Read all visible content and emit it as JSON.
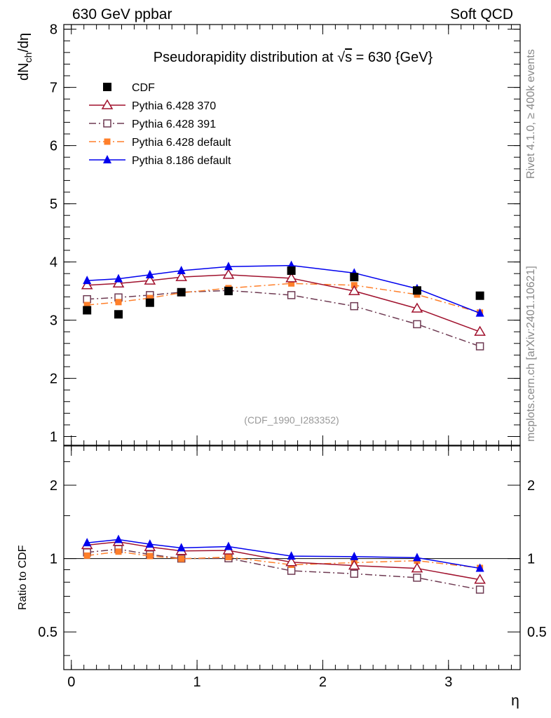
{
  "header": {
    "left": "630 GeV ppbar",
    "right": "Soft QCD"
  },
  "side_labels": {
    "rivet": "Rivet 4.1.0, ≥ 400k events",
    "mcplots": "mcplots.cern.ch [arXiv:2401.10621]"
  },
  "chart_data": {
    "type": "line",
    "title": "Pseudorapidity distribution at √s = 630 {GeV}",
    "title_prefix": "Pseudorapidity distribution at ",
    "title_sqrt": "√",
    "title_s": "s",
    "title_suffix": " = 630 {GeV}",
    "ylabel": "dN_ch/dη",
    "ylabel_main": "dN",
    "ylabel_sub": "ch",
    "ylabel_tail": "/dη",
    "ratio_ylabel": "Ratio to CDF",
    "xlabel": "η",
    "watermark": "(CDF_1990_I283352)",
    "xlim": [
      -0.06,
      3.57
    ],
    "ylim": [
      0.85,
      8.08
    ],
    "ratio_ylim": [
      0.35,
      2.9
    ],
    "ratio_scale": "log",
    "xticks": [
      "0",
      "1",
      "2",
      "3"
    ],
    "yticks": [
      "1",
      "2",
      "3",
      "4",
      "5",
      "6",
      "7",
      "8"
    ],
    "ratio_yticks": [
      "0.5",
      "1",
      "2"
    ],
    "legend_position": "top-left",
    "x": [
      0.125,
      0.375,
      0.625,
      0.875,
      1.25,
      1.75,
      2.25,
      2.75,
      3.25
    ],
    "series": [
      {
        "name": "CDF",
        "color": "#000000",
        "marker": "filled-square",
        "line": "none",
        "values": [
          3.17,
          3.1,
          3.3,
          3.48,
          3.5,
          3.85,
          3.74,
          3.51,
          3.42
        ]
      },
      {
        "name": "Pythia 6.428 370",
        "color": "#a0112d",
        "marker": "open-triangle",
        "line": "solid",
        "values": [
          3.6,
          3.63,
          3.68,
          3.74,
          3.78,
          3.72,
          3.5,
          3.2,
          2.8
        ]
      },
      {
        "name": "Pythia 6.428 391",
        "color": "#6e3a52",
        "marker": "open-square",
        "line": "dashdot",
        "values": [
          3.36,
          3.39,
          3.43,
          3.48,
          3.51,
          3.43,
          3.24,
          2.93,
          2.55
        ]
      },
      {
        "name": "Pythia 6.428 default",
        "color": "#ff7f2a",
        "marker": "small-filled-square",
        "line": "dashdot",
        "values": [
          3.26,
          3.31,
          3.38,
          3.47,
          3.55,
          3.63,
          3.6,
          3.44,
          3.13
        ]
      },
      {
        "name": "Pythia 8.186 default",
        "color": "#0000ee",
        "marker": "filled-triangle",
        "line": "solid",
        "values": [
          3.68,
          3.71,
          3.78,
          3.85,
          3.92,
          3.94,
          3.81,
          3.54,
          3.12
        ]
      }
    ]
  }
}
